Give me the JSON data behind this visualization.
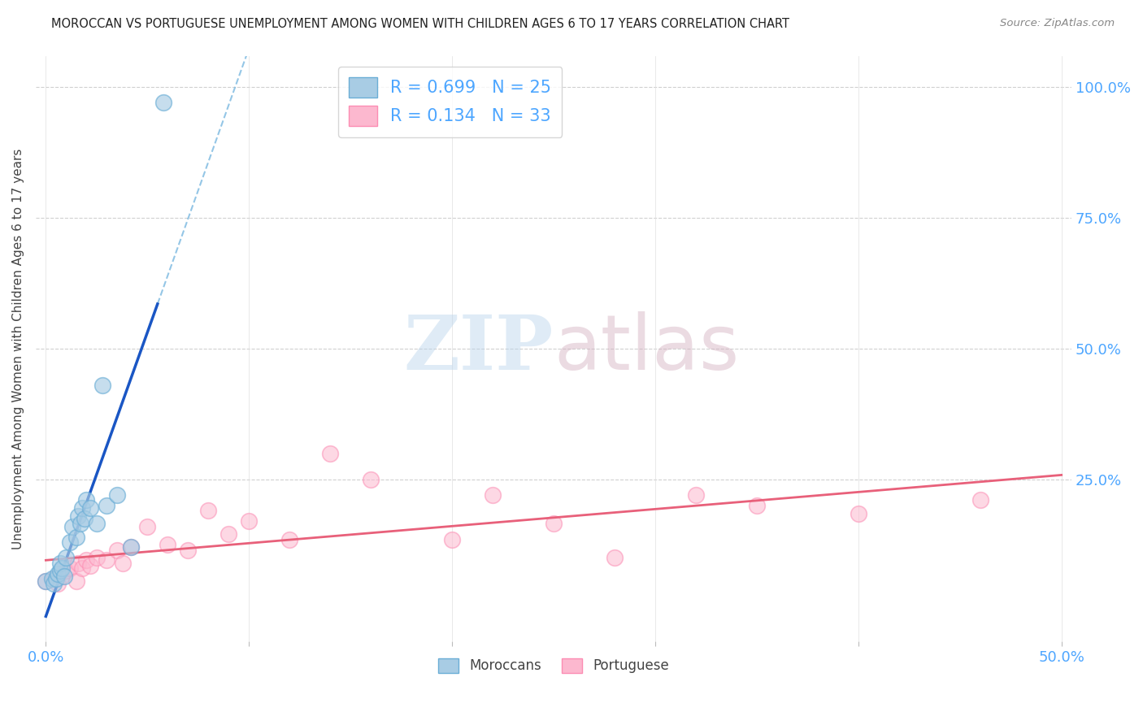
{
  "title": "MOROCCAN VS PORTUGUESE UNEMPLOYMENT AMONG WOMEN WITH CHILDREN AGES 6 TO 17 YEARS CORRELATION CHART",
  "source": "Source: ZipAtlas.com",
  "ylabel": "Unemployment Among Women with Children Ages 6 to 17 years",
  "moroccan_color": "#6baed6",
  "moroccan_color_fill": "#a8cce4",
  "portuguese_color": "#fc8db3",
  "portuguese_color_fill": "#fcb8cf",
  "moroccan_line_color": "#1a56c4",
  "portuguese_line_color": "#e8607a",
  "moroccan_dash_color": "#7ab8e0",
  "moroccan_R": 0.699,
  "moroccan_N": 25,
  "portuguese_R": 0.134,
  "portuguese_N": 33,
  "moroccan_x": [
    0.0,
    0.003,
    0.004,
    0.005,
    0.006,
    0.007,
    0.007,
    0.008,
    0.009,
    0.01,
    0.012,
    0.013,
    0.015,
    0.016,
    0.017,
    0.018,
    0.019,
    0.02,
    0.022,
    0.025,
    0.028,
    0.03,
    0.035,
    0.042,
    0.058
  ],
  "moroccan_y": [
    0.055,
    0.06,
    0.05,
    0.06,
    0.07,
    0.075,
    0.09,
    0.08,
    0.065,
    0.1,
    0.13,
    0.16,
    0.14,
    0.18,
    0.165,
    0.195,
    0.175,
    0.21,
    0.195,
    0.165,
    0.43,
    0.2,
    0.22,
    0.12,
    0.97
  ],
  "portuguese_x": [
    0.0,
    0.004,
    0.006,
    0.008,
    0.01,
    0.012,
    0.015,
    0.016,
    0.018,
    0.02,
    0.022,
    0.025,
    0.03,
    0.035,
    0.038,
    0.042,
    0.05,
    0.06,
    0.07,
    0.08,
    0.09,
    0.1,
    0.12,
    0.14,
    0.16,
    0.2,
    0.22,
    0.25,
    0.28,
    0.32,
    0.35,
    0.4,
    0.46
  ],
  "portuguese_y": [
    0.055,
    0.06,
    0.05,
    0.065,
    0.075,
    0.08,
    0.055,
    0.09,
    0.08,
    0.095,
    0.085,
    0.1,
    0.095,
    0.115,
    0.09,
    0.12,
    0.16,
    0.125,
    0.115,
    0.19,
    0.145,
    0.17,
    0.135,
    0.3,
    0.25,
    0.135,
    0.22,
    0.165,
    0.1,
    0.22,
    0.2,
    0.185,
    0.21
  ],
  "background_color": "#ffffff",
  "grid_color": "#d0d0d0",
  "xlim": [
    -0.005,
    0.505
  ],
  "ylim": [
    -0.06,
    1.06
  ],
  "x_ticks": [
    0.0,
    0.1,
    0.2,
    0.3,
    0.4,
    0.5
  ],
  "x_tick_labels_show": [
    "0.0%",
    "50.0%"
  ],
  "y_ticks_right": [
    0.0,
    0.25,
    0.5,
    0.75,
    1.0
  ],
  "y_tick_labels_right": [
    "",
    "25.0%",
    "50.0%",
    "75.0%",
    "100.0%"
  ]
}
